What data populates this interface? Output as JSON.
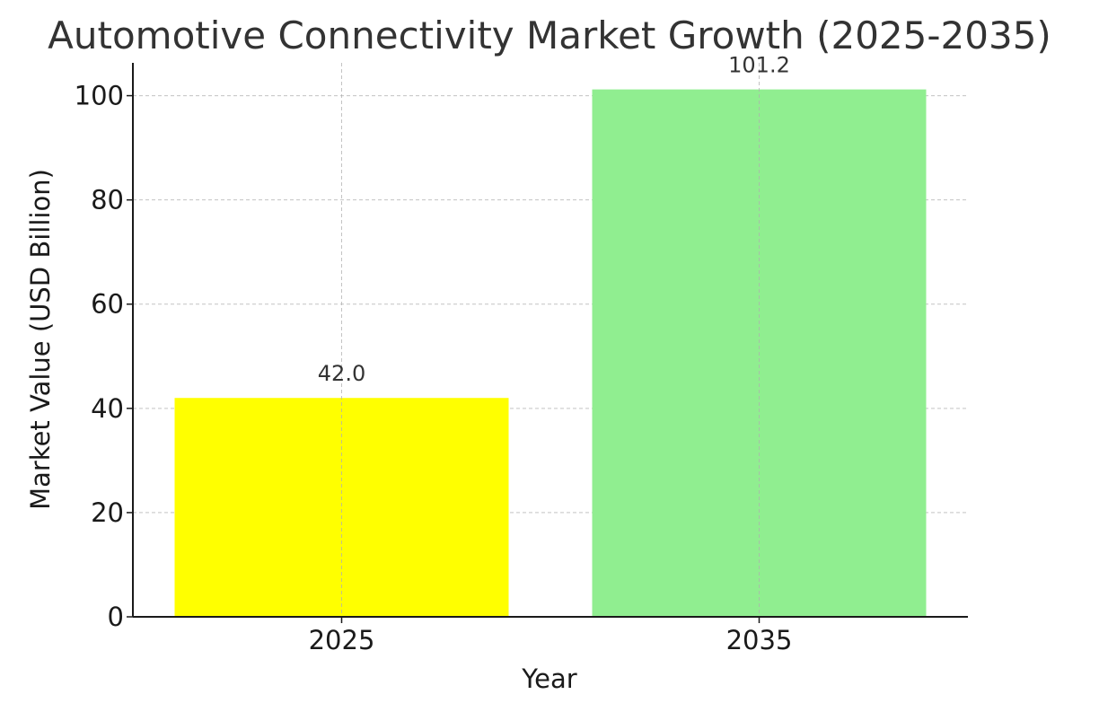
{
  "chart_data": {
    "type": "bar",
    "title": "Automotive Connectivity Market Growth (2025-2035)",
    "xlabel": "Year",
    "ylabel": "Market Value (USD Billion)",
    "categories": [
      "2025",
      "2035"
    ],
    "values": [
      42.0,
      101.2
    ],
    "data_labels": [
      "42.0",
      "101.2"
    ],
    "bar_colors": [
      "#ffff00",
      "#90ee90"
    ],
    "ylim": [
      0,
      106.3
    ],
    "yticks": [
      0,
      20,
      40,
      60,
      80,
      100
    ],
    "ytick_labels": [
      "0",
      "20",
      "40",
      "60",
      "80",
      "100"
    ],
    "grid": true,
    "legend": "none"
  }
}
